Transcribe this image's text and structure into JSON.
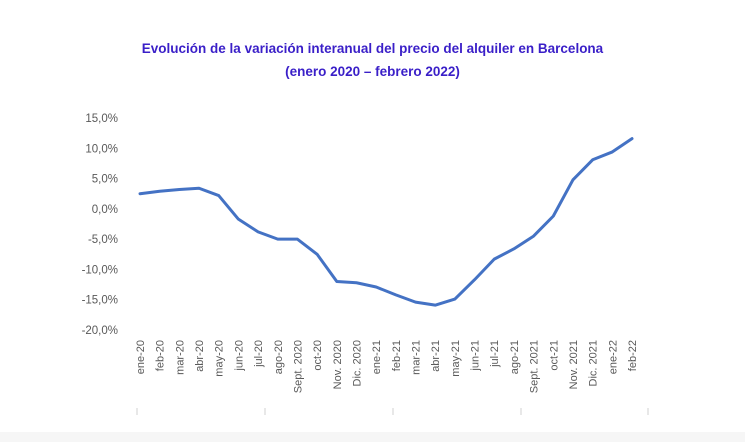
{
  "chart_data": {
    "type": "line",
    "title": "Evolución de la variación interanual del precio del alquiler en Barcelona",
    "subtitle": "(enero 2020 – febrero 2022)",
    "xlabel": "",
    "ylabel": "",
    "categories": [
      "ene-20",
      "feb-20",
      "mar-20",
      "abr-20",
      "may-20",
      "jun-20",
      "jul-20",
      "ago-20",
      "Sept. 2020",
      "oct-20",
      "Nov. 2020",
      "Dic. 2020",
      "ene-21",
      "feb-21",
      "mar-21",
      "abr-21",
      "may-21",
      "jun-21",
      "jul-21",
      "ago-21",
      "Sept. 2021",
      "oct-21",
      "Nov. 2021",
      "Dic. 2021",
      "ene-22",
      "feb-22"
    ],
    "series": [
      {
        "values": [
          2.5,
          2.9,
          3.2,
          3.4,
          2.2,
          -1.7,
          -3.8,
          -5.0,
          -5.0,
          -7.5,
          -12.0,
          -12.2,
          -12.9,
          -14.2,
          -15.4,
          -15.9,
          -14.9,
          -11.7,
          -8.3,
          -6.6,
          -4.5,
          -1.2,
          4.8,
          8.1,
          9.4,
          11.6
        ],
        "color": "#4472c4"
      }
    ],
    "ylim": [
      -20,
      15
    ],
    "yticks": [
      "15,0%",
      "10,0%",
      "5,0%",
      "0,0%",
      "-5,0%",
      "-10,0%",
      "-15,0%",
      "-20,0%"
    ],
    "grid": false,
    "legend": "none",
    "title_color": "#3a1fc8"
  }
}
